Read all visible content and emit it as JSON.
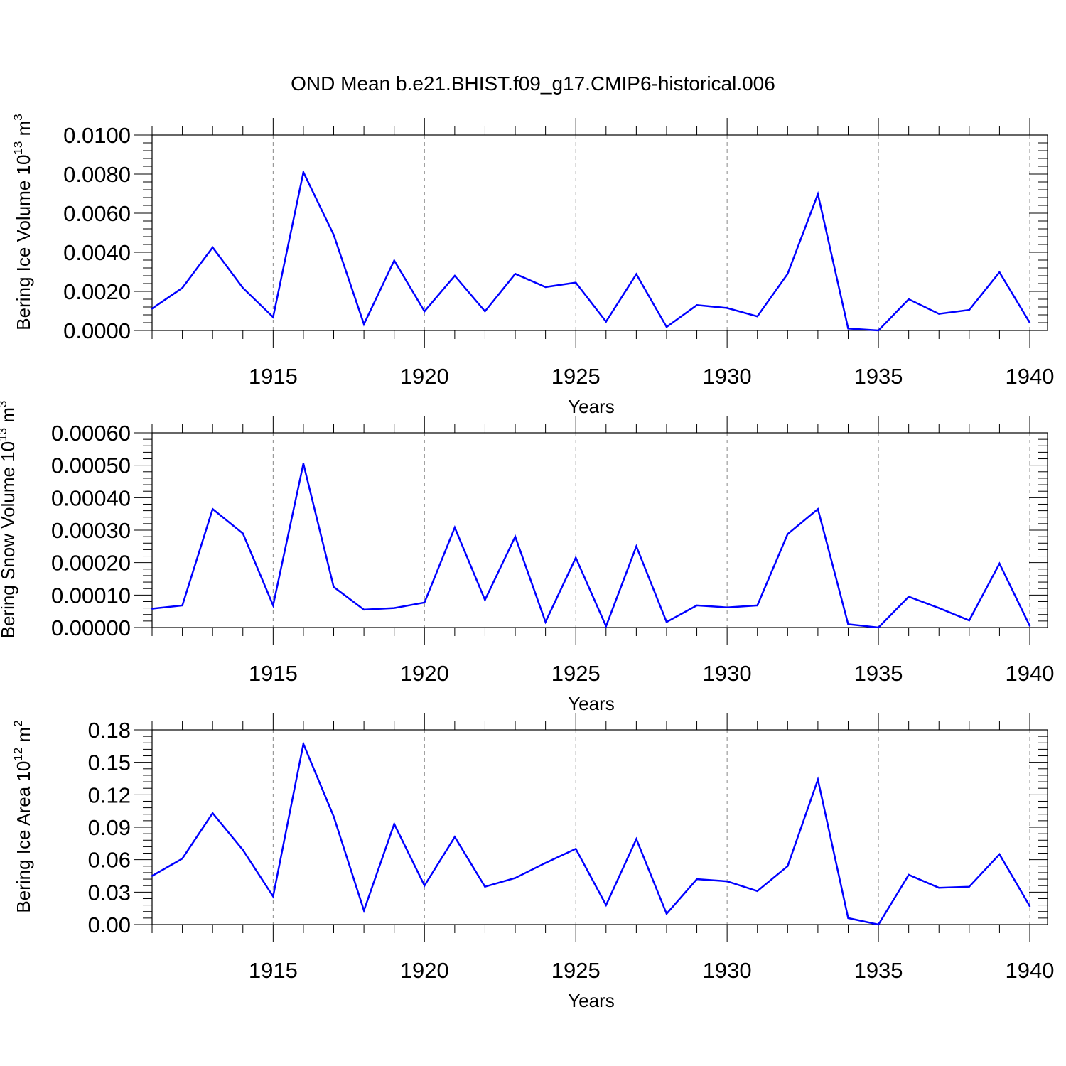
{
  "figure": {
    "title": "OND Mean b.e21.BHIST.f09_g17.CMIP6-historical.006",
    "line_color": "#0000ff"
  },
  "chart_data": [
    {
      "type": "line",
      "ylabel_main": "Bering Ice Volume 10",
      "ylabel_exp": "13",
      "ylabel_unit": " m",
      "ylabel_unit_exp": "3",
      "xlabel": "Years",
      "xlim": [
        1911,
        1940
      ],
      "ylim": [
        0,
        0.01
      ],
      "yticks": [
        0,
        0.002,
        0.004,
        0.006,
        0.008,
        0.01
      ],
      "ytick_labels": [
        "0.0000",
        "0.0020",
        "0.0040",
        "0.0060",
        "0.0080",
        "0.0100"
      ],
      "xticks": [
        1915,
        1920,
        1925,
        1930,
        1935,
        1940
      ],
      "xtick_labels": [
        "1915",
        "1920",
        "1925",
        "1930",
        "1935",
        "1940"
      ],
      "grid": "dashed vertical at major x ticks",
      "x": [
        1911,
        1912,
        1913,
        1914,
        1915,
        1916,
        1917,
        1918,
        1919,
        1920,
        1921,
        1922,
        1923,
        1924,
        1925,
        1926,
        1927,
        1928,
        1929,
        1930,
        1931,
        1932,
        1933,
        1934,
        1935,
        1936,
        1937,
        1938,
        1939,
        1940
      ],
      "values": [
        0.00112,
        0.00218,
        0.00425,
        0.00218,
        0.00068,
        0.0081,
        0.0049,
        0.00032,
        0.00358,
        0.00098,
        0.0028,
        0.00098,
        0.0029,
        0.00222,
        0.00245,
        0.00045,
        0.00288,
        0.00018,
        0.0013,
        0.00115,
        0.00072,
        0.0029,
        0.00698,
        0.0001,
        0.0,
        0.0016,
        0.00085,
        0.00105,
        0.00298,
        0.0004
      ]
    },
    {
      "type": "line",
      "ylabel_main": "Bering Snow Volume 10",
      "ylabel_exp": "13",
      "ylabel_unit": " m",
      "ylabel_unit_exp": "3",
      "xlabel": "Years",
      "xlim": [
        1911,
        1940
      ],
      "ylim": [
        0,
        0.0006
      ],
      "yticks": [
        0,
        0.0001,
        0.0002,
        0.0003,
        0.0004,
        0.0005,
        0.0006
      ],
      "ytick_labels": [
        "0.00000",
        "0.00010",
        "0.00020",
        "0.00030",
        "0.00040",
        "0.00050",
        "0.00060"
      ],
      "xticks": [
        1915,
        1920,
        1925,
        1930,
        1935,
        1940
      ],
      "xtick_labels": [
        "1915",
        "1920",
        "1925",
        "1930",
        "1935",
        "1940"
      ],
      "grid": "dashed vertical at major x ticks",
      "x": [
        1911,
        1912,
        1913,
        1914,
        1915,
        1916,
        1917,
        1918,
        1919,
        1920,
        1921,
        1922,
        1923,
        1924,
        1925,
        1926,
        1927,
        1928,
        1929,
        1930,
        1931,
        1932,
        1933,
        1934,
        1935,
        1936,
        1937,
        1938,
        1939,
        1940
      ],
      "values": [
        5.8e-05,
        6.8e-05,
        0.000365,
        0.00029,
        6.8e-05,
        0.000505,
        0.000125,
        5.5e-05,
        6e-05,
        7.7e-05,
        0.000308,
        8.5e-05,
        0.00028,
        1.7e-05,
        0.000215,
        4e-06,
        0.00025,
        1.7e-05,
        6.8e-05,
        6.2e-05,
        6.8e-05,
        0.000288,
        0.000365,
        1e-05,
        0.0,
        9.5e-05,
        6e-05,
        2.2e-05,
        0.000197,
        5e-06
      ]
    },
    {
      "type": "line",
      "ylabel_main": "Bering Ice Area 10",
      "ylabel_exp": "12",
      "ylabel_unit": " m",
      "ylabel_unit_exp": "2",
      "xlabel": "Years",
      "xlim": [
        1911,
        1940
      ],
      "ylim": [
        0,
        0.18
      ],
      "yticks": [
        0,
        0.03,
        0.06,
        0.09,
        0.12,
        0.15,
        0.18
      ],
      "ytick_labels": [
        "0.00",
        "0.03",
        "0.06",
        "0.09",
        "0.12",
        "0.15",
        "0.18"
      ],
      "xticks": [
        1915,
        1920,
        1925,
        1930,
        1935,
        1940
      ],
      "xtick_labels": [
        "1915",
        "1920",
        "1925",
        "1930",
        "1935",
        "1940"
      ],
      "grid": "dashed vertical at major x ticks",
      "x": [
        1911,
        1912,
        1913,
        1914,
        1915,
        1916,
        1917,
        1918,
        1919,
        1920,
        1921,
        1922,
        1923,
        1924,
        1925,
        1926,
        1927,
        1928,
        1929,
        1930,
        1931,
        1932,
        1933,
        1934,
        1935,
        1936,
        1937,
        1938,
        1939,
        1940
      ],
      "values": [
        0.045,
        0.061,
        0.103,
        0.069,
        0.026,
        0.167,
        0.1,
        0.013,
        0.093,
        0.036,
        0.081,
        0.035,
        0.043,
        0.057,
        0.07,
        0.018,
        0.079,
        0.01,
        0.042,
        0.04,
        0.031,
        0.054,
        0.134,
        0.006,
        0.0,
        0.046,
        0.034,
        0.035,
        0.065,
        0.017
      ]
    }
  ]
}
